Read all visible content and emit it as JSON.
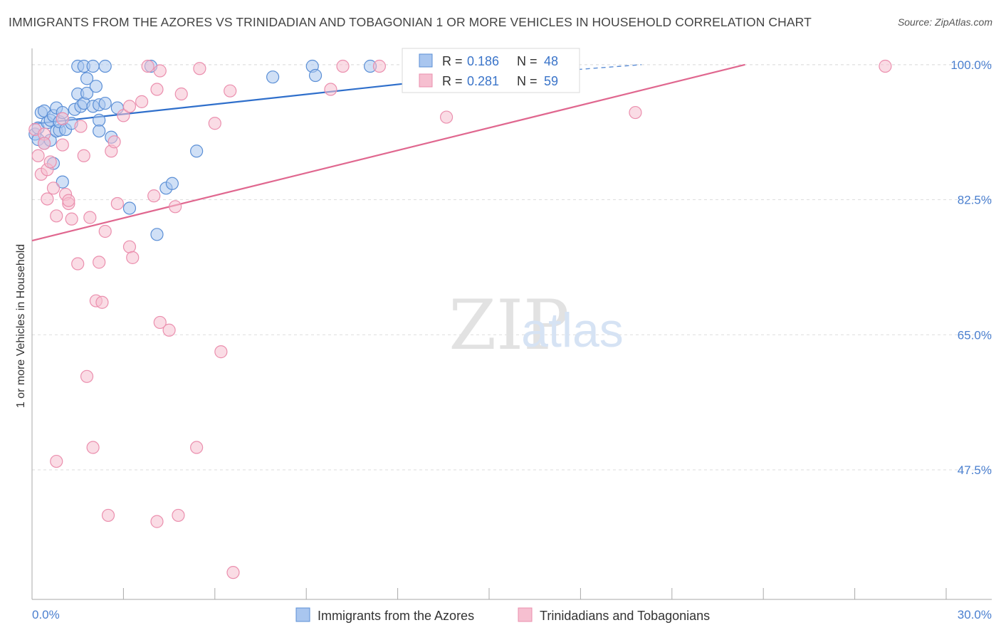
{
  "header": {
    "title": "IMMIGRANTS FROM THE AZORES VS TRINIDADIAN AND TOBAGONIAN 1 OR MORE VEHICLES IN HOUSEHOLD CORRELATION CHART",
    "source": "Source: ZipAtlas.com"
  },
  "watermark": {
    "zip": "ZIP",
    "atlas": "atlas"
  },
  "colors": {
    "blue_fill": "#a9c6ef",
    "blue_stroke": "#5b8fd6",
    "blue_line": "#2f6fcb",
    "pink_fill": "#f6bfd0",
    "pink_stroke": "#eb8fae",
    "pink_line": "#e0678f",
    "tick_text": "#4a7fcf",
    "grid": "#dddddd"
  },
  "chart_data": {
    "type": "scatter",
    "xlabel": "",
    "ylabel": "1 or more Vehicles in Household",
    "xlim": [
      0,
      30
    ],
    "ylim": [
      32,
      101
    ],
    "y_ticks": [
      47.5,
      65.0,
      82.5,
      100.0
    ],
    "y_tick_labels": [
      "47.5%",
      "65.0%",
      "82.5%",
      "100.0%"
    ],
    "x_tick_labels": [
      "0.0%",
      "30.0%"
    ],
    "x_minor_ticks": [
      3,
      6,
      9,
      12,
      15,
      18,
      21,
      24,
      27,
      30
    ],
    "grid": true,
    "legend_position": "top-center",
    "legend": [
      {
        "r_label": "R = ",
        "r": "0.186",
        "n_label": "N = ",
        "n": "48"
      },
      {
        "r_label": "R = ",
        "r": "0.281",
        "n_label": "N = ",
        "n": "59"
      }
    ],
    "series": [
      {
        "name": "Immigrants from the Azores",
        "color": "blue",
        "trend": {
          "x0": 0.0,
          "y0": 92.3,
          "x1": 13.3,
          "y1": 98.0,
          "dash_to_x": 20.0,
          "dash_to_y": 100.0
        },
        "points": [
          [
            0.1,
            91.0
          ],
          [
            0.2,
            90.3
          ],
          [
            0.2,
            91.8
          ],
          [
            0.3,
            93.8
          ],
          [
            0.4,
            94.0
          ],
          [
            0.4,
            89.8
          ],
          [
            0.5,
            92.5
          ],
          [
            0.6,
            90.2
          ],
          [
            0.6,
            92.8
          ],
          [
            0.7,
            93.4
          ],
          [
            0.7,
            87.2
          ],
          [
            0.8,
            94.4
          ],
          [
            0.8,
            91.4
          ],
          [
            0.9,
            91.5
          ],
          [
            0.9,
            92.6
          ],
          [
            1.0,
            84.8
          ],
          [
            1.0,
            93.8
          ],
          [
            1.1,
            91.6
          ],
          [
            1.3,
            92.4
          ],
          [
            1.4,
            94.2
          ],
          [
            1.5,
            96.2
          ],
          [
            1.5,
            99.8
          ],
          [
            1.6,
            94.6
          ],
          [
            1.7,
            99.8
          ],
          [
            1.7,
            95.0
          ],
          [
            1.8,
            98.2
          ],
          [
            1.8,
            96.3
          ],
          [
            2.0,
            99.8
          ],
          [
            2.0,
            94.6
          ],
          [
            2.2,
            94.8
          ],
          [
            2.1,
            97.2
          ],
          [
            2.2,
            92.8
          ],
          [
            2.2,
            91.4
          ],
          [
            2.4,
            95.0
          ],
          [
            2.4,
            99.8
          ],
          [
            2.6,
            90.6
          ],
          [
            2.8,
            94.4
          ],
          [
            3.2,
            81.4
          ],
          [
            3.9,
            99.8
          ],
          [
            4.1,
            78.0
          ],
          [
            4.4,
            84.0
          ],
          [
            4.6,
            84.6
          ],
          [
            5.4,
            88.8
          ],
          [
            7.9,
            98.4
          ],
          [
            9.2,
            99.8
          ],
          [
            9.3,
            98.6
          ],
          [
            11.1,
            99.8
          ],
          [
            12.9,
            99.5
          ]
        ]
      },
      {
        "name": "Trinidadians and Tobagonians",
        "color": "pink",
        "trend": {
          "x0": 0.0,
          "y0": 77.2,
          "x1": 23.4,
          "y1": 100.0
        },
        "points": [
          [
            0.1,
            91.6
          ],
          [
            0.2,
            88.2
          ],
          [
            0.3,
            85.8
          ],
          [
            0.4,
            91.0
          ],
          [
            0.4,
            89.8
          ],
          [
            0.5,
            86.4
          ],
          [
            0.5,
            82.6
          ],
          [
            0.6,
            87.4
          ],
          [
            0.7,
            84.0
          ],
          [
            0.8,
            80.4
          ],
          [
            0.8,
            48.6
          ],
          [
            1.0,
            89.6
          ],
          [
            1.0,
            93.0
          ],
          [
            1.1,
            83.2
          ],
          [
            1.2,
            82.0
          ],
          [
            1.2,
            82.4
          ],
          [
            1.3,
            80.0
          ],
          [
            1.5,
            74.2
          ],
          [
            1.6,
            92.0
          ],
          [
            1.7,
            88.2
          ],
          [
            1.8,
            59.6
          ],
          [
            1.9,
            80.2
          ],
          [
            2.0,
            50.4
          ],
          [
            2.1,
            69.4
          ],
          [
            2.2,
            74.4
          ],
          [
            2.3,
            69.2
          ],
          [
            2.4,
            78.4
          ],
          [
            2.5,
            41.6
          ],
          [
            2.6,
            88.8
          ],
          [
            2.7,
            90.0
          ],
          [
            2.8,
            82.0
          ],
          [
            3.0,
            93.4
          ],
          [
            3.2,
            76.4
          ],
          [
            3.2,
            94.6
          ],
          [
            3.3,
            75.0
          ],
          [
            3.6,
            95.2
          ],
          [
            3.8,
            99.8
          ],
          [
            4.0,
            83.0
          ],
          [
            4.1,
            96.8
          ],
          [
            4.1,
            40.8
          ],
          [
            4.2,
            99.2
          ],
          [
            4.2,
            66.6
          ],
          [
            4.5,
            65.6
          ],
          [
            4.7,
            81.6
          ],
          [
            4.8,
            41.6
          ],
          [
            4.9,
            96.2
          ],
          [
            5.4,
            50.4
          ],
          [
            5.5,
            99.5
          ],
          [
            6.0,
            92.4
          ],
          [
            6.2,
            62.8
          ],
          [
            6.5,
            96.6
          ],
          [
            6.6,
            34.2
          ],
          [
            9.8,
            96.8
          ],
          [
            10.2,
            99.8
          ],
          [
            11.4,
            99.8
          ],
          [
            12.5,
            99.5
          ],
          [
            13.6,
            93.2
          ],
          [
            19.8,
            93.8
          ],
          [
            28.0,
            99.8
          ]
        ]
      }
    ]
  }
}
